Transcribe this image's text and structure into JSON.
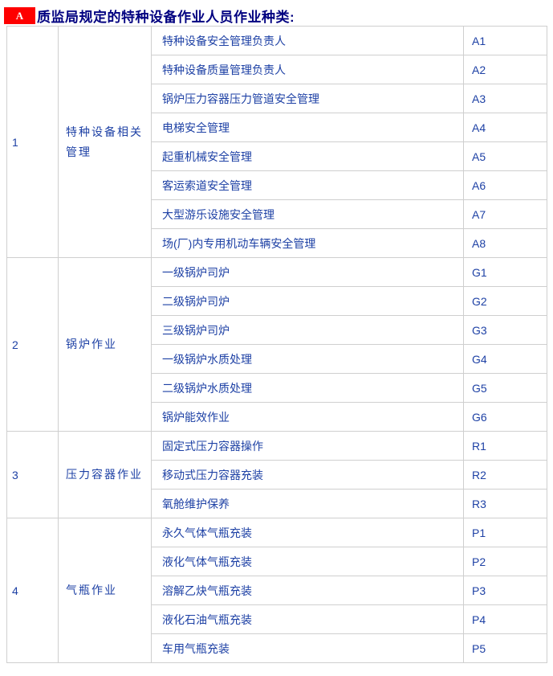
{
  "header": {
    "badge": "A",
    "title": "质监局规定的特种设备作业人员作业种类:"
  },
  "colors": {
    "badge_bg": "#fe0000",
    "badge_text": "#ffffff",
    "title_text": "#000080",
    "cell_text": "#1e41a5",
    "border": "#cfcfcf"
  },
  "table": {
    "groups": [
      {
        "no": "1",
        "category": "特种设备相关管理",
        "items": [
          {
            "name": "特种设备安全管理负责人",
            "code": "A1"
          },
          {
            "name": "特种设备质量管理负责人",
            "code": "A2"
          },
          {
            "name": "锅炉压力容器压力管道安全管理",
            "code": "A3"
          },
          {
            "name": "电梯安全管理",
            "code": "A4"
          },
          {
            "name": "起重机械安全管理",
            "code": "A5"
          },
          {
            "name": "客运索道安全管理",
            "code": "A6"
          },
          {
            "name": "大型游乐设施安全管理",
            "code": "A7"
          },
          {
            "name": "场(厂)内专用机动车辆安全管理",
            "code": "A8"
          }
        ]
      },
      {
        "no": "2",
        "category": "锅炉作业",
        "items": [
          {
            "name": "一级锅炉司炉",
            "code": "G1"
          },
          {
            "name": "二级锅炉司炉",
            "code": "G2"
          },
          {
            "name": "三级锅炉司炉",
            "code": "G3"
          },
          {
            "name": "一级锅炉水质处理",
            "code": "G4"
          },
          {
            "name": "二级锅炉水质处理",
            "code": "G5"
          },
          {
            "name": "锅炉能效作业",
            "code": "G6"
          }
        ]
      },
      {
        "no": "3",
        "category": "压力容器作业",
        "items": [
          {
            "name": "固定式压力容器操作",
            "code": "R1"
          },
          {
            "name": "移动式压力容器充装",
            "code": "R2"
          },
          {
            "name": "氧舱维护保养",
            "code": "R3"
          }
        ]
      },
      {
        "no": "4",
        "category": "气瓶作业",
        "items": [
          {
            "name": "永久气体气瓶充装",
            "code": "P1"
          },
          {
            "name": "液化气体气瓶充装",
            "code": "P2"
          },
          {
            "name": "溶解乙炔气瓶充装",
            "code": "P3"
          },
          {
            "name": "液化石油气瓶充装",
            "code": "P4"
          },
          {
            "name": "车用气瓶充装",
            "code": "P5"
          }
        ]
      }
    ]
  }
}
